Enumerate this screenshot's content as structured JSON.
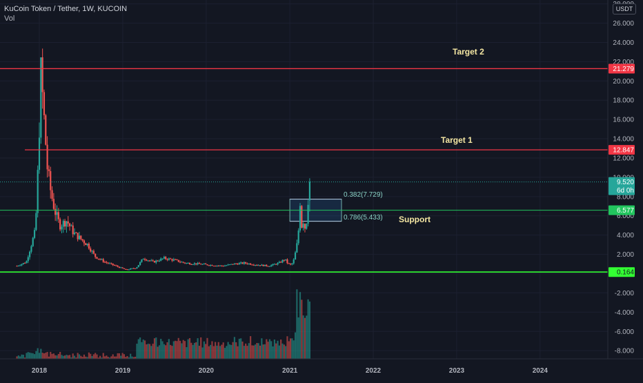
{
  "header": {
    "symbol_title": "KuCoin Token / Tether, 1W, KUCOIN",
    "volume_label": "Vol",
    "currency_button": "USDT"
  },
  "colors": {
    "background": "#131722",
    "up": "#26a69a",
    "down": "#ef5350",
    "resistance_line": "#f23645",
    "support_line": "#22c55e",
    "annotation_text": "#f5e7a3"
  },
  "annotations": {
    "target2": "Target 2",
    "target1": "Target 1",
    "support": "Support",
    "fib_upper": "0.382(7.729)",
    "fib_lower": "0.786(5.433)"
  },
  "price_axis": {
    "ticks": [
      "28.000",
      "26.000",
      "24.000",
      "22.000",
      "20.000",
      "18.000",
      "16.000",
      "14.000",
      "12.000",
      "10.000",
      "8.000",
      "6.000",
      "4.000",
      "2.000",
      "0.000",
      "-2.000",
      "-4.000",
      "-6.000",
      "-8.000"
    ],
    "badges": {
      "target2": "21.279",
      "target1": "12.847",
      "current_price": "9.520",
      "countdown": "6d 0h",
      "support": "6.577",
      "floor": "0.164"
    }
  },
  "time_axis": {
    "labels": [
      "2018",
      "2019",
      "2020",
      "2021",
      "2022",
      "2023",
      "2024"
    ]
  },
  "chart_data": {
    "type": "candlestick",
    "interval": "1W",
    "ylim": [
      -9,
      29
    ],
    "horizontal_lines": [
      {
        "name": "Target 2",
        "value": 21.279
      },
      {
        "name": "Target 1",
        "value": 12.847
      },
      {
        "name": "Support",
        "value": 6.577
      },
      {
        "name": "",
        "value": 0.164
      }
    ],
    "fib_zone": {
      "upper": 7.729,
      "lower": 5.433
    },
    "current_price": 9.52,
    "price_path": [
      [
        "2017-09-25",
        0.8
      ],
      [
        "2017-11-05",
        1.2
      ],
      [
        "2017-12-15",
        4.5
      ],
      [
        "2017-12-28",
        12.0
      ],
      [
        "2018-01-08",
        21.0
      ],
      [
        "2018-01-22",
        16.0
      ],
      [
        "2018-02-05",
        11.0
      ],
      [
        "2018-02-20",
        8.5
      ],
      [
        "2018-03-10",
        6.5
      ],
      [
        "2018-04-01",
        5.0
      ],
      [
        "2018-05-01",
        5.5
      ],
      [
        "2018-06-01",
        4.2
      ],
      [
        "2018-07-01",
        3.6
      ],
      [
        "2018-08-01",
        3.0
      ],
      [
        "2018-09-01",
        1.8
      ],
      [
        "2018-10-15",
        1.2
      ],
      [
        "2018-12-01",
        0.8
      ],
      [
        "2019-01-15",
        0.4
      ],
      [
        "2019-03-01",
        0.6
      ],
      [
        "2019-04-01",
        1.6
      ],
      [
        "2019-05-15",
        1.2
      ],
      [
        "2019-07-01",
        1.6
      ],
      [
        "2019-08-15",
        1.4
      ],
      [
        "2019-10-01",
        1.1
      ],
      [
        "2019-12-01",
        1.0
      ],
      [
        "2020-01-15",
        0.9
      ],
      [
        "2020-03-15",
        0.8
      ],
      [
        "2020-05-01",
        1.0
      ],
      [
        "2020-06-15",
        1.1
      ],
      [
        "2020-08-15",
        0.9
      ],
      [
        "2020-10-01",
        0.8
      ],
      [
        "2020-11-15",
        1.1
      ],
      [
        "2020-12-10",
        1.5
      ],
      [
        "2020-12-25",
        1.0
      ],
      [
        "2021-01-08",
        0.9
      ],
      [
        "2021-01-20",
        1.5
      ],
      [
        "2021-02-01",
        3.0
      ],
      [
        "2021-02-08",
        4.5
      ],
      [
        "2021-02-15",
        7.5
      ],
      [
        "2021-02-22",
        5.0
      ],
      [
        "2021-03-01",
        5.5
      ],
      [
        "2021-03-08",
        4.8
      ],
      [
        "2021-03-15",
        5.5
      ],
      [
        "2021-03-22",
        7.7
      ],
      [
        "2021-03-29",
        9.5
      ]
    ]
  }
}
